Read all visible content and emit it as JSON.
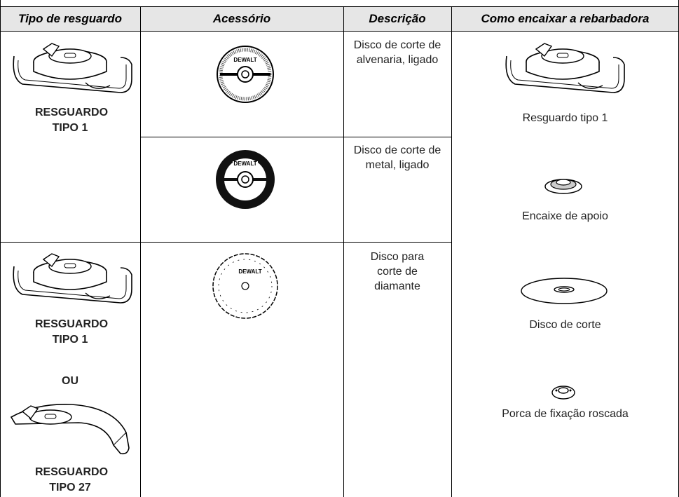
{
  "table": {
    "headers": [
      "Tipo de resguardo",
      "Acessório",
      "Descrição",
      "Como encaixar a rebarbadora"
    ],
    "guard_groups": [
      {
        "labels": [
          "RESGUARDO TIPO 1"
        ]
      },
      {
        "labels": [
          "RESGUARDO TIPO 1",
          "OU",
          "RESGUARDO TIPO 27"
        ]
      }
    ],
    "accessories": [
      {
        "logo": "DEWALT",
        "description": "Disco de corte de alvenaria, ligado"
      },
      {
        "logo": "DEWALT",
        "description": "Disco de corte de metal, ligado"
      },
      {
        "logo": "DEWALT",
        "description": "Disco para corte de diamante"
      }
    ],
    "assembly_steps": [
      "Resguardo tipo 1",
      "Encaixe de apoio",
      "Disco de corte",
      "Porca de fixação roscada"
    ]
  }
}
